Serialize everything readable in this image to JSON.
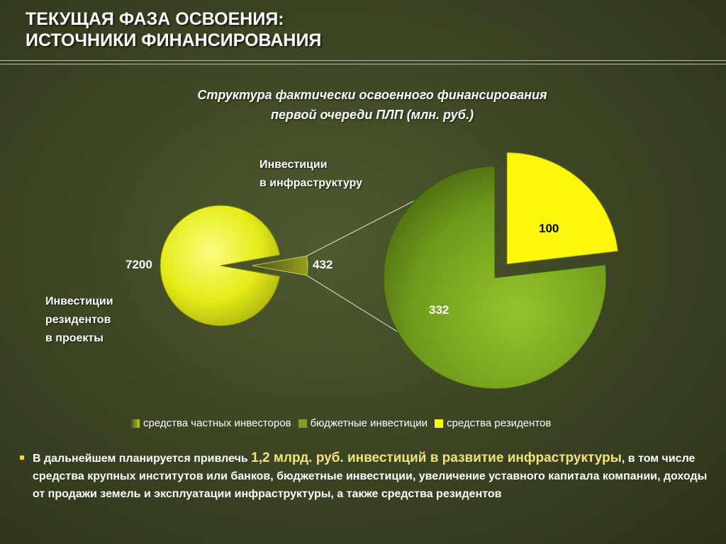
{
  "header": {
    "title_line1": "ТЕКУЩАЯ ФАЗА ОСВОЕНИЯ:",
    "title_line2": "ИСТОЧНИКИ ФИНАНСИРОВАНИЯ"
  },
  "chart_data": {
    "type": "pie",
    "title_line1": "Структура фактически освоенного финансирования",
    "title_line2": "первой очереди ПЛП (млн. руб.)",
    "main_pie": {
      "slices": [
        {
          "label": "Инвестиции резидентов в проекты",
          "value": 7200,
          "value_label": "7200",
          "color": "#e8ee1a"
        },
        {
          "label": "Инвестиции в инфраструктуру",
          "value": 432,
          "value_label": "432",
          "color": "#7f8a18"
        }
      ]
    },
    "breakdown_pie": {
      "of_slice": "Инвестиции в инфраструктуру",
      "slices": [
        {
          "value": 332,
          "value_label": "332",
          "color": "#7ca31d",
          "series": "бюджетные инвестиции"
        },
        {
          "value": 100,
          "value_label": "100",
          "color": "#fcf70b",
          "series": "средства резидентов"
        }
      ]
    },
    "annotations": {
      "infra_line1": "Инвестиции",
      "infra_line2": "в инфраструктуру",
      "res_line1": "Инвестиции",
      "res_line2": "резидентов",
      "res_line3": "в проекты"
    },
    "legend": [
      {
        "label": "средства частных инвесторов",
        "color": "#8d9620"
      },
      {
        "label": "бюджетные инвестиции",
        "color": "#7ca31d"
      },
      {
        "label": "средства резидентов",
        "color": "#fcf70b"
      }
    ],
    "legend_placement": "bottom"
  },
  "bullet": {
    "prefix": "В дальнейшем планируется привлечь ",
    "highlight": "1,2 млрд. руб. инвестиций в развитие инфраструктуры",
    "suffix": ", в том числе средства крупных институтов или банков,  бюджетные инвестиции, увеличение уставного капитала компании, доходы от продажи земель и эксплуатации инфраструктуры, а также средства резидентов",
    "marker_color": "#ffd21c"
  }
}
